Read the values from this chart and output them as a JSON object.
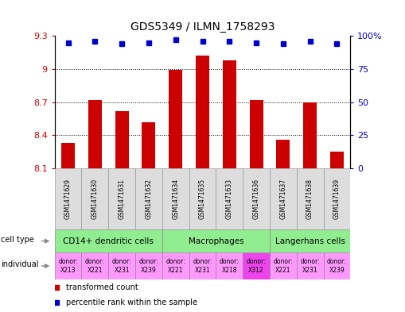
{
  "title": "GDS5349 / ILMN_1758293",
  "samples": [
    "GSM1471629",
    "GSM1471630",
    "GSM1471631",
    "GSM1471632",
    "GSM1471634",
    "GSM1471635",
    "GSM1471633",
    "GSM1471636",
    "GSM1471637",
    "GSM1471638",
    "GSM1471639"
  ],
  "red_values": [
    8.33,
    8.72,
    8.62,
    8.52,
    8.99,
    9.12,
    9.08,
    8.72,
    8.36,
    8.7,
    8.25
  ],
  "blue_values": [
    95,
    96,
    94,
    95,
    97,
    96,
    96,
    95,
    94,
    96,
    94
  ],
  "ylim_left": [
    8.1,
    9.3
  ],
  "ylim_right": [
    0,
    100
  ],
  "yticks_left": [
    8.1,
    8.4,
    8.7,
    9.0,
    9.3
  ],
  "ytick_labels_left": [
    "8.1",
    "8.4",
    "8.7",
    "9",
    "9.3"
  ],
  "yticks_right": [
    0,
    25,
    50,
    75,
    100
  ],
  "ytick_labels_right": [
    "0",
    "25",
    "50",
    "75",
    "100%"
  ],
  "cell_types": [
    {
      "label": "CD14+ dendritic cells",
      "start": 0,
      "end": 4
    },
    {
      "label": "Macrophages",
      "start": 4,
      "end": 8
    },
    {
      "label": "Langerhans cells",
      "start": 8,
      "end": 11
    }
  ],
  "individuals": [
    {
      "label": "donor:\nX213",
      "color": "#FF99FF"
    },
    {
      "label": "donor:\nX221",
      "color": "#FF99FF"
    },
    {
      "label": "donor:\nX231",
      "color": "#FF99FF"
    },
    {
      "label": "donor:\nX239",
      "color": "#FF99FF"
    },
    {
      "label": "donor:\nX221",
      "color": "#FF99FF"
    },
    {
      "label": "donor:\nX231",
      "color": "#FF99FF"
    },
    {
      "label": "donor:\nX218",
      "color": "#FF99FF"
    },
    {
      "label": "donor:\nX312",
      "color": "#EE44EE"
    },
    {
      "label": "donor:\nX221",
      "color": "#FF99FF"
    },
    {
      "label": "donor:\nX231",
      "color": "#FF99FF"
    },
    {
      "label": "donor:\nX239",
      "color": "#FF99FF"
    }
  ],
  "bar_color": "#CC0000",
  "dot_color": "#0000CC",
  "bar_bottom": 8.1,
  "sample_box_color": "#DDDDDD",
  "cell_type_color": "#90EE90",
  "bg_color": "#FFFFFF",
  "tick_label_color_left": "#CC0000",
  "tick_label_color_right": "#0000CC",
  "left_label_color": "#888888"
}
